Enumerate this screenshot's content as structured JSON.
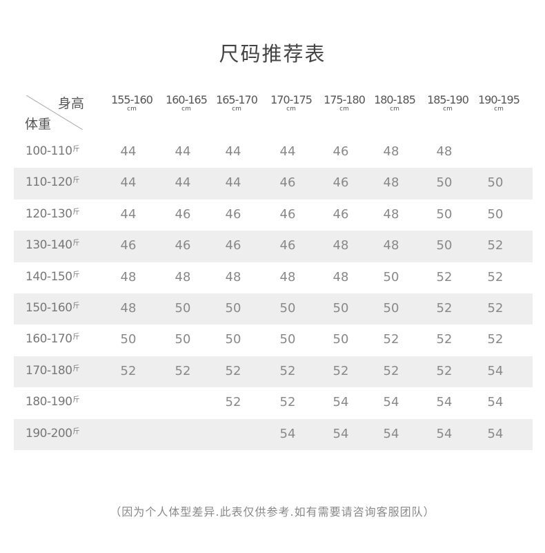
{
  "title": "尺码推荐表",
  "corner": {
    "height_label": "身高",
    "weight_label": "体重"
  },
  "unit_height": "cm",
  "unit_weight": "斤",
  "columns": [
    "155-160",
    "160-165",
    "165-170",
    "170-175",
    "175-180",
    "180-185",
    "185-190",
    "190-195"
  ],
  "rows": [
    {
      "label": "100-110",
      "values": [
        "44",
        "44",
        "44",
        "44",
        "46",
        "48",
        "48",
        ""
      ]
    },
    {
      "label": "110-120",
      "values": [
        "44",
        "44",
        "44",
        "46",
        "46",
        "48",
        "50",
        "50"
      ]
    },
    {
      "label": "120-130",
      "values": [
        "44",
        "46",
        "46",
        "46",
        "46",
        "48",
        "50",
        "50"
      ]
    },
    {
      "label": "130-140",
      "values": [
        "46",
        "46",
        "46",
        "46",
        "48",
        "48",
        "50",
        "52"
      ]
    },
    {
      "label": "140-150",
      "values": [
        "48",
        "48",
        "48",
        "48",
        "48",
        "50",
        "52",
        "52"
      ]
    },
    {
      "label": "150-160",
      "values": [
        "48",
        "50",
        "50",
        "50",
        "50",
        "50",
        "52",
        "52"
      ]
    },
    {
      "label": "160-170",
      "values": [
        "50",
        "50",
        "50",
        "50",
        "50",
        "52",
        "52",
        "52"
      ]
    },
    {
      "label": "170-180",
      "values": [
        "52",
        "52",
        "52",
        "52",
        "52",
        "52",
        "52",
        "54"
      ]
    },
    {
      "label": "180-190",
      "values": [
        "",
        "",
        "52",
        "52",
        "54",
        "54",
        "54",
        "54"
      ]
    },
    {
      "label": "190-200",
      "values": [
        "",
        "",
        "",
        "54",
        "54",
        "54",
        "54",
        "54"
      ]
    }
  ],
  "note": "（因为个人体型差异.此表仅供参考.如有需要请咨询客服团队）",
  "colors": {
    "row_shade": "#eeeeee",
    "text": "#888888"
  }
}
